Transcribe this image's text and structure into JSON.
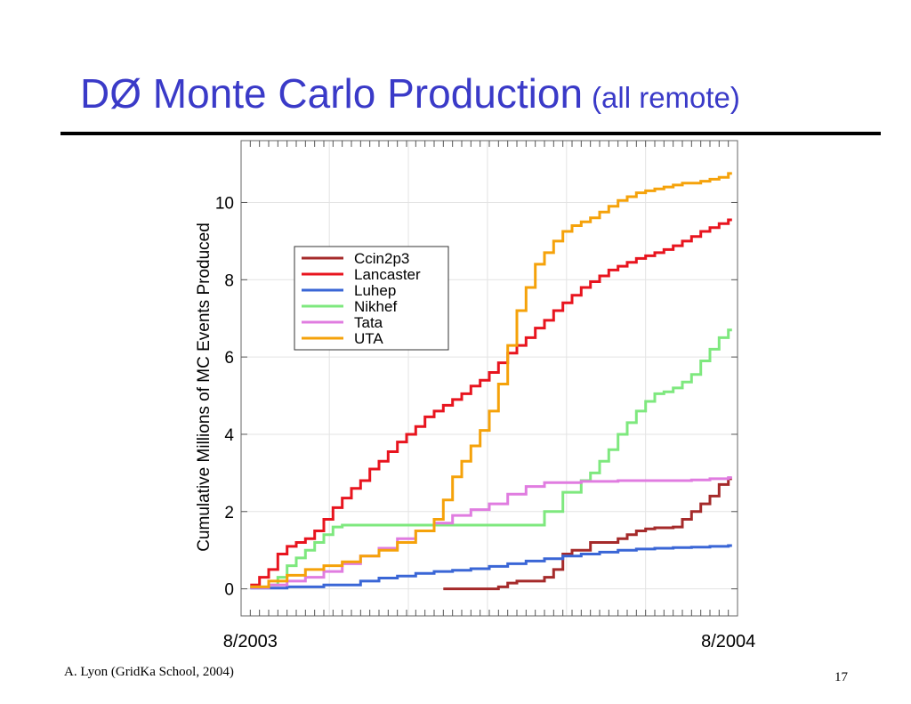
{
  "slide": {
    "title_main": "DØ Monte Carlo Production",
    "title_sub": "(all remote)",
    "footer_left": "A. Lyon (GridKa School, 2004)",
    "page_number": "17"
  },
  "chart_data": {
    "type": "line",
    "step": true,
    "title": "",
    "xlabel": "",
    "ylabel": "Cumulative Millions of MC Events Produced",
    "x_tick_labels": [
      "8/2003",
      "8/2004"
    ],
    "x_label_values": [
      0,
      52
    ],
    "xlim": [
      -1,
      53
    ],
    "ylim": [
      -0.7,
      11.6
    ],
    "y_ticks": [
      0,
      2,
      4,
      6,
      8,
      10
    ],
    "grid": true,
    "legend_position": "upper-left",
    "series": [
      {
        "name": "Ccin2p3",
        "color": "#a52a2a",
        "x": [
          21,
          27,
          28,
          29,
          32,
          33,
          34,
          35,
          37,
          40,
          41,
          42,
          43,
          44,
          45,
          46,
          47,
          48,
          49,
          50,
          51,
          52
        ],
        "y": [
          0.0,
          0.05,
          0.15,
          0.2,
          0.3,
          0.5,
          0.9,
          1.0,
          1.2,
          1.3,
          1.4,
          1.5,
          1.55,
          1.58,
          1.58,
          1.6,
          1.8,
          2.0,
          2.2,
          2.4,
          2.7,
          2.85
        ]
      },
      {
        "name": "Lancaster",
        "color": "#e8141e",
        "x": [
          0,
          1,
          2,
          3,
          4,
          5,
          6,
          7,
          8,
          9,
          10,
          11,
          12,
          13,
          14,
          15,
          16,
          17,
          18,
          19,
          20,
          21,
          22,
          23,
          24,
          25,
          26,
          27,
          28,
          29,
          30,
          31,
          32,
          33,
          34,
          35,
          36,
          37,
          38,
          39,
          40,
          41,
          42,
          43,
          44,
          45,
          46,
          47,
          48,
          49,
          50,
          51,
          52
        ],
        "y": [
          0.1,
          0.3,
          0.5,
          0.9,
          1.1,
          1.2,
          1.3,
          1.5,
          1.8,
          2.1,
          2.35,
          2.6,
          2.8,
          3.1,
          3.3,
          3.55,
          3.8,
          4.0,
          4.2,
          4.45,
          4.6,
          4.75,
          4.9,
          5.05,
          5.25,
          5.4,
          5.6,
          5.85,
          6.1,
          6.3,
          6.5,
          6.75,
          6.95,
          7.2,
          7.4,
          7.6,
          7.8,
          7.95,
          8.1,
          8.25,
          8.35,
          8.45,
          8.55,
          8.62,
          8.7,
          8.78,
          8.88,
          9.0,
          9.12,
          9.25,
          9.35,
          9.45,
          9.55
        ]
      },
      {
        "name": "Luhep",
        "color": "#3a66d6",
        "x": [
          0,
          4,
          8,
          12,
          14,
          16,
          18,
          20,
          22,
          24,
          26,
          28,
          30,
          32,
          34,
          36,
          38,
          40,
          42,
          44,
          46,
          48,
          50,
          52
        ],
        "y": [
          0.02,
          0.05,
          0.1,
          0.2,
          0.28,
          0.33,
          0.4,
          0.45,
          0.48,
          0.52,
          0.58,
          0.65,
          0.72,
          0.78,
          0.85,
          0.9,
          0.95,
          1.0,
          1.03,
          1.05,
          1.07,
          1.08,
          1.1,
          1.12
        ]
      },
      {
        "name": "Nikhef",
        "color": "#7ee87e",
        "x": [
          0,
          2,
          3,
          4,
          5,
          6,
          7,
          8,
          9,
          10,
          31,
          32,
          34,
          36,
          37,
          38,
          39,
          40,
          41,
          42,
          43,
          44,
          45,
          46,
          47,
          48,
          49,
          50,
          51,
          52
        ],
        "y": [
          0.05,
          0.1,
          0.3,
          0.6,
          0.8,
          1.0,
          1.2,
          1.4,
          1.6,
          1.65,
          1.65,
          2.0,
          2.5,
          2.8,
          3.0,
          3.3,
          3.6,
          4.0,
          4.3,
          4.6,
          4.85,
          5.05,
          5.1,
          5.2,
          5.35,
          5.55,
          5.9,
          6.2,
          6.5,
          6.7
        ]
      },
      {
        "name": "Tata",
        "color": "#e07ce0",
        "x": [
          0,
          2,
          4,
          6,
          8,
          10,
          12,
          14,
          16,
          18,
          20,
          22,
          24,
          26,
          28,
          30,
          32,
          34,
          36,
          38,
          40,
          42,
          44,
          46,
          48,
          50,
          52
        ],
        "y": [
          0.03,
          0.1,
          0.2,
          0.3,
          0.45,
          0.65,
          0.85,
          1.05,
          1.3,
          1.5,
          1.7,
          1.9,
          2.05,
          2.2,
          2.45,
          2.65,
          2.75,
          2.75,
          2.78,
          2.78,
          2.8,
          2.8,
          2.8,
          2.8,
          2.82,
          2.85,
          2.88
        ]
      },
      {
        "name": "UTA",
        "color": "#f5a20a",
        "x": [
          0,
          2,
          4,
          6,
          8,
          10,
          12,
          14,
          16,
          18,
          20,
          21,
          22,
          23,
          24,
          25,
          26,
          27,
          28,
          29,
          30,
          31,
          32,
          33,
          34,
          35,
          36,
          37,
          38,
          39,
          40,
          41,
          42,
          43,
          44,
          45,
          46,
          47,
          48,
          49,
          50,
          51,
          52
        ],
        "y": [
          0.05,
          0.2,
          0.35,
          0.5,
          0.6,
          0.7,
          0.85,
          1.0,
          1.2,
          1.5,
          1.8,
          2.3,
          2.9,
          3.3,
          3.7,
          4.1,
          4.6,
          5.3,
          6.3,
          7.2,
          7.8,
          8.4,
          8.7,
          9.0,
          9.25,
          9.4,
          9.5,
          9.6,
          9.75,
          9.9,
          10.05,
          10.15,
          10.25,
          10.3,
          10.35,
          10.4,
          10.45,
          10.5,
          10.5,
          10.55,
          10.6,
          10.65,
          10.75
        ]
      }
    ]
  }
}
